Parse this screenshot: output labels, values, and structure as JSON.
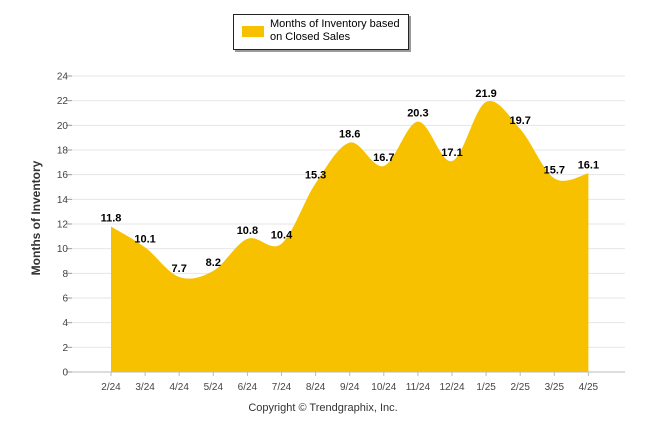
{
  "chart_data": {
    "type": "area",
    "categories": [
      "2/24",
      "3/24",
      "4/24",
      "5/24",
      "6/24",
      "7/24",
      "8/24",
      "9/24",
      "10/24",
      "11/24",
      "12/24",
      "1/25",
      "2/25",
      "3/25",
      "4/25"
    ],
    "series": [
      {
        "name": "Months of Inventory based on Closed Sales",
        "values": [
          11.8,
          10.1,
          7.7,
          8.2,
          10.8,
          10.4,
          15.3,
          18.6,
          16.7,
          20.3,
          17.1,
          21.9,
          19.7,
          15.7,
          16.1
        ],
        "color": "#F7C100"
      }
    ],
    "ylabel": "Months of Inventory",
    "yticks": [
      0,
      2,
      4,
      6,
      8,
      10,
      12,
      14,
      16,
      18,
      20,
      22,
      24
    ],
    "ylim": [
      0,
      24
    ],
    "grid": true,
    "legend_position": "top-center",
    "data_labels": true
  },
  "footer": {
    "copyright": "Copyright © Trendgraphix, Inc."
  }
}
